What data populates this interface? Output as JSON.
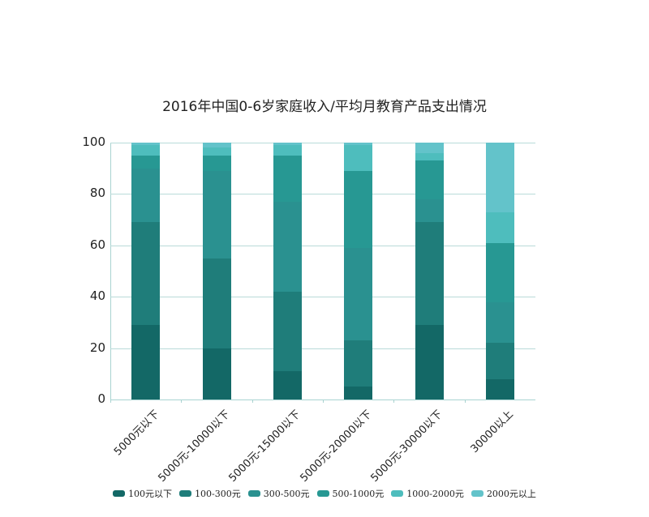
{
  "chart_data": {
    "type": "bar",
    "stacked": true,
    "title": "2016年中国0-6岁家庭收入/平均月教育产品支出情况",
    "xlabel": "",
    "ylabel": "",
    "ylim": [
      0,
      100
    ],
    "yticks": [
      "0",
      "20",
      "40",
      "60",
      "80",
      "100"
    ],
    "grid": true,
    "legend_position": "bottom",
    "categories": [
      "5000元以下",
      "5000元-10000以下",
      "5000元-15000以下",
      "5000元-20000以下",
      "5000元-30000以下",
      "30000以上"
    ],
    "series": [
      {
        "name": "100元以下",
        "color": "#136866",
        "values": [
          29,
          20,
          11,
          5,
          29,
          8
        ]
      },
      {
        "name": "100-300元",
        "color": "#1f7d7a",
        "values": [
          40,
          35,
          31,
          18,
          40,
          14
        ]
      },
      {
        "name": "300-500元",
        "color": "#2a9190",
        "values": [
          21,
          34,
          35,
          36,
          9,
          16
        ]
      },
      {
        "name": "500-1000元",
        "color": "#279893",
        "values": [
          5,
          6,
          18,
          30,
          15,
          23
        ]
      },
      {
        "name": "1000-2000元",
        "color": "#4ebdbd",
        "values": [
          4,
          3,
          4,
          10,
          3,
          12
        ]
      },
      {
        "name": "2000元以上",
        "color": "#63c3ca",
        "values": [
          1,
          2,
          1,
          1,
          4,
          27
        ]
      }
    ]
  }
}
